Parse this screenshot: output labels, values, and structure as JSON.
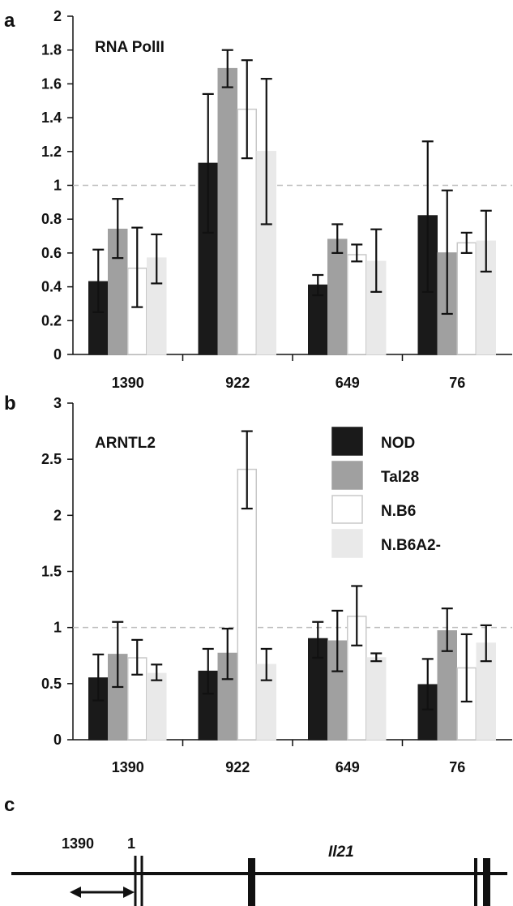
{
  "panel_letters": [
    "a",
    "b",
    "c"
  ],
  "legend": {
    "entries": [
      {
        "label": "NOD",
        "color": "#1a1a1a",
        "stroke": "#1a1a1a"
      },
      {
        "label": "Tal28",
        "color": "#a0a0a0",
        "stroke": "#a0a0a0"
      },
      {
        "label": "N.B6",
        "color": "#ffffff",
        "stroke": "#c8c8c8"
      },
      {
        "label": "N.B6A2-",
        "color": "#e9e9e9",
        "stroke": "#e9e9e9"
      }
    ]
  },
  "chart_data": [
    {
      "type": "bar",
      "panel": "a",
      "title": "RNA PolII",
      "categories": [
        "1390",
        "922",
        "649",
        "76"
      ],
      "ylim": [
        0,
        2
      ],
      "yticks": [
        "0",
        "0.2",
        "0.4",
        "0.6",
        "0.8",
        "1",
        "1.2",
        "1.4",
        "1.6",
        "1.8",
        "2"
      ],
      "reference_line": 1,
      "series": [
        {
          "name": "NOD",
          "values": [
            0.43,
            1.13,
            0.41,
            0.82
          ],
          "err_low": [
            0.25,
            0.72,
            0.35,
            0.37
          ],
          "err_high": [
            0.62,
            1.54,
            0.47,
            1.26
          ]
        },
        {
          "name": "Tal28",
          "values": [
            0.74,
            1.69,
            0.68,
            0.6
          ],
          "err_low": [
            0.57,
            1.58,
            0.6,
            0.24
          ],
          "err_high": [
            0.92,
            1.8,
            0.77,
            0.97
          ]
        },
        {
          "name": "N.B6",
          "values": [
            0.51,
            1.45,
            0.59,
            0.66
          ],
          "err_low": [
            0.28,
            1.16,
            0.55,
            0.6
          ],
          "err_high": [
            0.75,
            1.74,
            0.65,
            0.72
          ]
        },
        {
          "name": "N.B6A2-",
          "values": [
            0.57,
            1.2,
            0.55,
            0.67
          ],
          "err_low": [
            0.42,
            0.77,
            0.37,
            0.49
          ],
          "err_high": [
            0.71,
            1.63,
            0.74,
            0.85
          ]
        }
      ]
    },
    {
      "type": "bar",
      "panel": "b",
      "title": "ARNTL2",
      "categories": [
        "1390",
        "922",
        "649",
        "76"
      ],
      "ylim": [
        0,
        3
      ],
      "yticks": [
        "0",
        "0.5",
        "1",
        "1.5",
        "2",
        "2.5",
        "3"
      ],
      "reference_line": 1,
      "series": [
        {
          "name": "NOD",
          "values": [
            0.55,
            0.61,
            0.9,
            0.49
          ],
          "err_low": [
            0.35,
            0.41,
            0.73,
            0.27
          ],
          "err_high": [
            0.76,
            0.81,
            1.05,
            0.72
          ]
        },
        {
          "name": "Tal28",
          "values": [
            0.76,
            0.77,
            0.88,
            0.97
          ],
          "err_low": [
            0.47,
            0.54,
            0.61,
            0.79
          ],
          "err_high": [
            1.05,
            0.99,
            1.15,
            1.17
          ]
        },
        {
          "name": "N.B6",
          "values": [
            0.73,
            2.41,
            1.1,
            0.64
          ],
          "err_low": [
            0.58,
            2.06,
            0.84,
            0.34
          ],
          "err_high": [
            0.89,
            2.75,
            1.37,
            0.94
          ]
        },
        {
          "name": "N.B6A2-",
          "values": [
            0.59,
            0.67,
            0.73,
            0.86
          ],
          "err_low": [
            0.53,
            0.53,
            0.7,
            0.7
          ],
          "err_high": [
            0.67,
            0.81,
            0.77,
            1.02
          ]
        }
      ]
    }
  ],
  "gene_diagram": {
    "gene_name": "Il21",
    "label_1390": "1390",
    "label_1": "1"
  }
}
